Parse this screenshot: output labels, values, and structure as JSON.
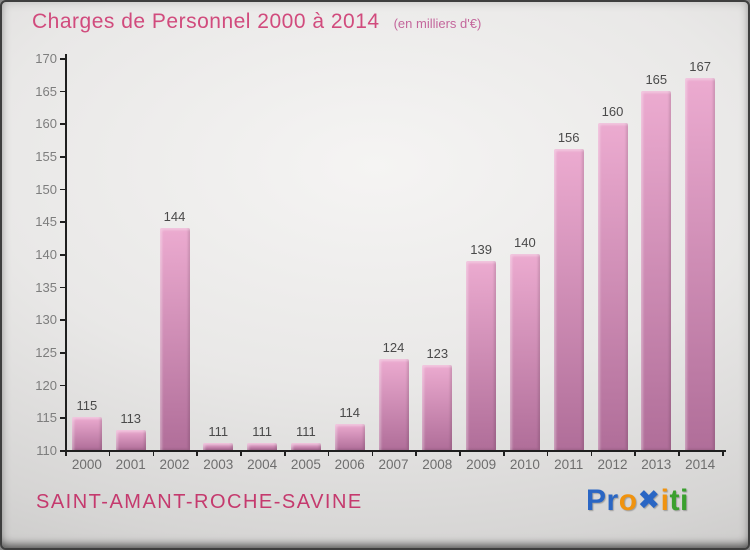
{
  "title": {
    "text": "Charges de Personnel 2000 à 2014",
    "subtitle": "(en milliers d'€)"
  },
  "chart_data": {
    "type": "bar",
    "categories": [
      "2000",
      "2001",
      "2002",
      "2003",
      "2004",
      "2005",
      "2006",
      "2007",
      "2008",
      "2009",
      "2010",
      "2011",
      "2012",
      "2013",
      "2014"
    ],
    "values": [
      115,
      113,
      144,
      111,
      111,
      111,
      114,
      124,
      123,
      139,
      140,
      156,
      160,
      165,
      167
    ],
    "title": "Charges de Personnel 2000 à 2014",
    "subtitle": "(en milliers d'€)",
    "xlabel": "",
    "ylabel": "",
    "ylim": [
      110,
      170
    ],
    "ytick_step": 5,
    "grid": false,
    "legend": null,
    "value_labels_shown": true
  },
  "footer": {
    "commune": "SAINT-AMANT-ROCHE-SAVINE",
    "logo_letters": [
      {
        "ch": "P",
        "color": "#2a66c4"
      },
      {
        "ch": "r",
        "color": "#2a66c4"
      },
      {
        "ch": "o",
        "color": "#f0930f"
      },
      {
        "ch": "✖",
        "color": "#2a66c4"
      },
      {
        "ch": "i",
        "color": "#f0930f"
      },
      {
        "ch": "t",
        "color": "#3aa02e"
      },
      {
        "ch": "i",
        "color": "#3aa02e"
      }
    ]
  },
  "colors": {
    "title": "#d14b7d",
    "subtitle": "#c4679c",
    "axis": "#1f1f1f",
    "tick_label": "#7d7d7d",
    "xtick_label": "#6e6e6e",
    "value_label": "#4a4a4a",
    "bar_top": "#ecabd0",
    "bar_bottom": "#b06e99",
    "commune": "#c53a6e"
  }
}
